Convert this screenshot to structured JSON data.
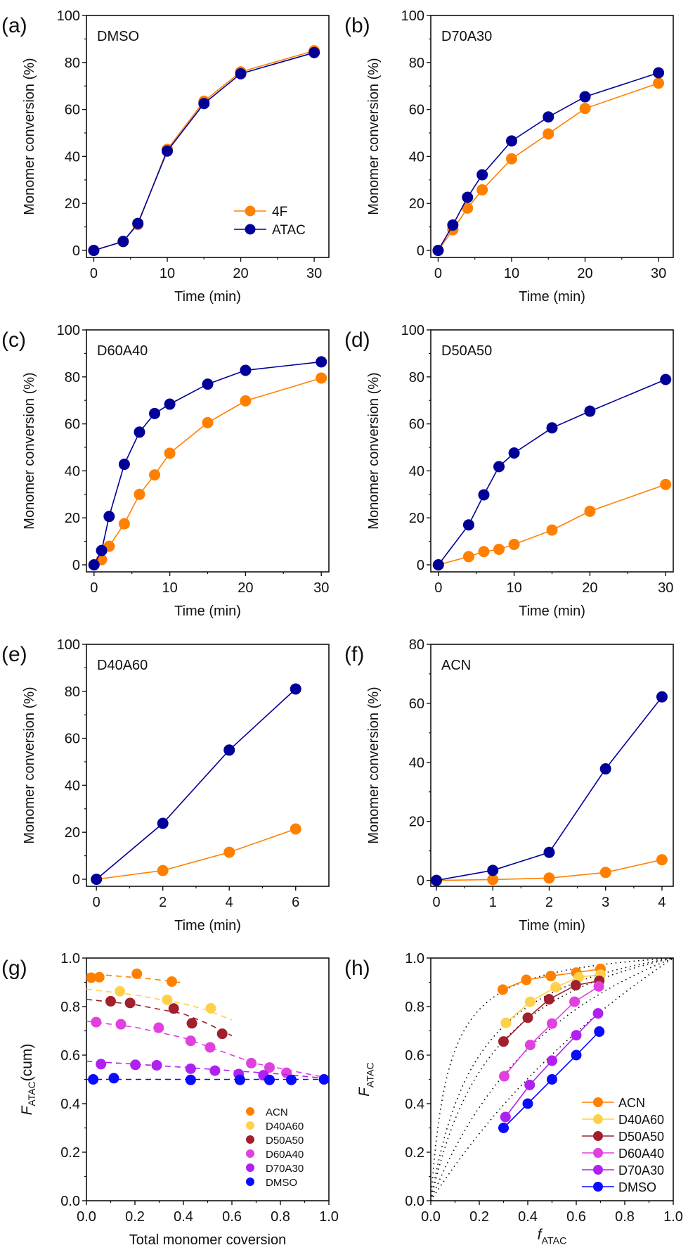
{
  "colors": {
    "4F": "#ff8000",
    "ATAC": "#000099",
    "ACN": "#ff8000",
    "D40A60": "#ffd04a",
    "D50A50": "#a0202e",
    "D60A40": "#e040e0",
    "D70A30": "#b020f0",
    "DMSO": "#0a0aff",
    "theory": "#000000"
  },
  "chart_data": [
    {
      "panel": "(a)",
      "type": "line",
      "annotation": "DMSO",
      "xlabel": "Time (min)",
      "ylabel": "Monomer conversion (%)",
      "xlim": [
        -1,
        32
      ],
      "ylim": [
        -3,
        100
      ],
      "xticks": [
        0,
        10,
        20,
        30
      ],
      "yticks": [
        0,
        20,
        40,
        60,
        80,
        100
      ],
      "legend": {
        "placement": "bottom-right",
        "entries": [
          "4F",
          "ATAC"
        ]
      },
      "series": [
        {
          "name": "4F",
          "x": [
            0,
            4,
            6,
            10,
            15,
            20,
            30
          ],
          "y": [
            0,
            3.8,
            11,
            43,
            63.5,
            76,
            85
          ]
        },
        {
          "name": "ATAC",
          "x": [
            0,
            4,
            6,
            10,
            15,
            20,
            30
          ],
          "y": [
            0,
            3.8,
            11.5,
            42.3,
            62.5,
            75.2,
            84.2
          ]
        }
      ]
    },
    {
      "panel": "(b)",
      "type": "line",
      "annotation": "D70A30",
      "xlabel": "Time (min)",
      "ylabel": "Monomer conversion (%)",
      "xlim": [
        -1,
        32
      ],
      "ylim": [
        -3,
        100
      ],
      "xticks": [
        0,
        10,
        20,
        30
      ],
      "yticks": [
        0,
        20,
        40,
        60,
        80,
        100
      ],
      "series": [
        {
          "name": "4F",
          "x": [
            0,
            2,
            4,
            6,
            10,
            15,
            20,
            30
          ],
          "y": [
            0,
            8.8,
            18,
            25.8,
            39,
            49.6,
            60.4,
            71.2
          ]
        },
        {
          "name": "ATAC",
          "x": [
            0,
            2,
            4,
            6,
            10,
            15,
            20,
            30
          ],
          "y": [
            0,
            10.8,
            22.6,
            32.2,
            46.6,
            56.8,
            65.4,
            75.6
          ]
        }
      ]
    },
    {
      "panel": "(c)",
      "type": "line",
      "annotation": "D60A40",
      "xlabel": "Time (min)",
      "ylabel": "Monomer conversion (%)",
      "xlim": [
        -1,
        31
      ],
      "ylim": [
        -3,
        100
      ],
      "xticks": [
        0,
        10,
        20,
        30
      ],
      "yticks": [
        0,
        20,
        40,
        60,
        80,
        100
      ],
      "series": [
        {
          "name": "4F",
          "x": [
            0,
            1,
            2,
            4,
            6,
            8,
            10,
            15,
            20,
            30
          ],
          "y": [
            0,
            2.2,
            7.9,
            17.5,
            30,
            38.3,
            47.5,
            60.5,
            69.8,
            79.5
          ]
        },
        {
          "name": "ATAC",
          "x": [
            0,
            1,
            2,
            4,
            6,
            8,
            10,
            15,
            20,
            30
          ],
          "y": [
            0,
            6.1,
            20.6,
            42.8,
            56.5,
            64.4,
            68.4,
            76.9,
            82.8,
            86.4
          ]
        }
      ]
    },
    {
      "panel": "(d)",
      "type": "line",
      "annotation": "D50A50",
      "xlabel": "Time (min)",
      "ylabel": "Monomer conversion (%)",
      "xlim": [
        -1,
        31
      ],
      "ylim": [
        -3,
        100
      ],
      "xticks": [
        0,
        10,
        20,
        30
      ],
      "yticks": [
        0,
        20,
        40,
        60,
        80,
        100
      ],
      "series": [
        {
          "name": "4F",
          "x": [
            0,
            4,
            6,
            8,
            10,
            15,
            20,
            30
          ],
          "y": [
            0,
            3.5,
            5.6,
            6.6,
            8.7,
            14.8,
            22.8,
            34.2
          ]
        },
        {
          "name": "ATAC",
          "x": [
            0,
            4,
            6,
            8,
            10,
            15,
            20,
            30
          ],
          "y": [
            0,
            17,
            29.8,
            41.8,
            47.6,
            58.3,
            65.4,
            78.9
          ]
        }
      ]
    },
    {
      "panel": "(e)",
      "type": "line",
      "annotation": "D40A60",
      "xlabel": "Time (min)",
      "ylabel": "Monomer conversion (%)",
      "xlim": [
        -0.3,
        7
      ],
      "ylim": [
        -3,
        100
      ],
      "xticks": [
        0,
        2,
        4,
        6
      ],
      "yticks": [
        0,
        20,
        40,
        60,
        80,
        100
      ],
      "series": [
        {
          "name": "4F",
          "x": [
            0,
            2,
            4,
            6
          ],
          "y": [
            0,
            3.7,
            11.5,
            21.4
          ]
        },
        {
          "name": "ATAC",
          "x": [
            0,
            2,
            4,
            6
          ],
          "y": [
            0,
            23.8,
            55,
            81
          ]
        }
      ]
    },
    {
      "panel": "(f)",
      "type": "line",
      "annotation": "ACN",
      "xlabel": "Time (min)",
      "ylabel": "Monomer conversion (%)",
      "xlim": [
        -0.1,
        4.2
      ],
      "ylim": [
        -2,
        80
      ],
      "xticks": [
        0,
        1,
        2,
        3,
        4
      ],
      "yticks": [
        0,
        20,
        40,
        60,
        80
      ],
      "series": [
        {
          "name": "4F",
          "x": [
            0,
            1,
            2,
            3,
            4
          ],
          "y": [
            0,
            0.3,
            0.8,
            2.7,
            7
          ]
        },
        {
          "name": "ATAC",
          "x": [
            0,
            1,
            2,
            3,
            4
          ],
          "y": [
            0,
            3.4,
            9.5,
            37.8,
            62.2
          ]
        }
      ]
    },
    {
      "panel": "(g)",
      "type": "scatter",
      "xlabel": "Total monomer coversion",
      "ylabel": "F_ATAC(cum)",
      "xlim": [
        0,
        1
      ],
      "ylim": [
        0,
        1
      ],
      "xticks": [
        0.0,
        0.2,
        0.4,
        0.6,
        0.8,
        1.0
      ],
      "yticks": [
        0.0,
        0.2,
        0.4,
        0.6,
        0.8,
        1.0
      ],
      "legend": {
        "placement": "bottom-right",
        "entries": [
          "ACN",
          "D40A60",
          "D50A50",
          "D60A40",
          "D70A30",
          "DMSO"
        ]
      },
      "series": [
        {
          "name": "ACN",
          "x": [
            0.02,
            0.053,
            0.208,
            0.352
          ],
          "y": [
            0.919,
            0.921,
            0.935,
            0.903
          ],
          "fit": {
            "x": [
              0.0,
              0.1,
              0.2,
              0.3,
              0.4
            ],
            "y": [
              0.935,
              0.928,
              0.92,
              0.91,
              0.897
            ]
          }
        },
        {
          "name": "D40A60",
          "x": [
            0.138,
            0.333,
            0.513
          ],
          "y": [
            0.863,
            0.828,
            0.793
          ],
          "fit": {
            "x": [
              0.0,
              0.2,
              0.4,
              0.5,
              0.6
            ],
            "y": [
              0.872,
              0.848,
              0.812,
              0.785,
              0.745
            ]
          }
        },
        {
          "name": "D50A50",
          "x": [
            0.1,
            0.18,
            0.36,
            0.435,
            0.56
          ],
          "y": [
            0.822,
            0.815,
            0.792,
            0.731,
            0.688
          ],
          "fit": {
            "x": [
              0.0,
              0.2,
              0.4,
              0.5,
              0.6
            ],
            "y": [
              0.83,
              0.808,
              0.77,
              0.73,
              0.68
            ]
          }
        },
        {
          "name": "D60A40",
          "x": [
            0.04,
            0.142,
            0.298,
            0.43,
            0.51,
            0.68,
            0.755,
            0.825
          ],
          "y": [
            0.736,
            0.727,
            0.713,
            0.659,
            0.632,
            0.567,
            0.549,
            0.527
          ],
          "fit": {
            "x": [
              0.0,
              0.2,
              0.4,
              0.6,
              0.7,
              0.8,
              0.9,
              1.0
            ],
            "y": [
              0.74,
              0.715,
              0.672,
              0.6,
              0.565,
              0.545,
              0.525,
              0.505
            ]
          }
        },
        {
          "name": "D70A30",
          "x": [
            0.06,
            0.202,
            0.29,
            0.43,
            0.53,
            0.628,
            0.73
          ],
          "y": [
            0.563,
            0.56,
            0.558,
            0.544,
            0.536,
            0.522,
            0.517
          ],
          "fit": {
            "x": [
              0.0,
              0.2,
              0.4,
              0.6,
              0.8,
              1.0
            ],
            "y": [
              0.575,
              0.563,
              0.55,
              0.536,
              0.522,
              0.503
            ]
          }
        },
        {
          "name": "DMSO",
          "x": [
            0.028,
            0.113,
            0.43,
            0.633,
            0.755,
            0.845,
            0.98
          ],
          "y": [
            0.5,
            0.505,
            0.498,
            0.498,
            0.498,
            0.498,
            0.5
          ],
          "fit": {
            "x": [
              0.0,
              1.0
            ],
            "y": [
              0.5,
              0.5
            ]
          }
        }
      ]
    },
    {
      "panel": "(h)",
      "type": "line",
      "xlabel": "f_ATAC",
      "ylabel": "F_ATAC",
      "xlim": [
        0,
        1
      ],
      "ylim": [
        0,
        1
      ],
      "xticks": [
        0.0,
        0.2,
        0.4,
        0.6,
        0.8,
        1.0
      ],
      "yticks": [
        0.0,
        0.2,
        0.4,
        0.6,
        0.8,
        1.0
      ],
      "legend": {
        "placement": "bottom-right",
        "entries": [
          "ACN",
          "D40A60",
          "D50A50",
          "D60A40",
          "D70A30",
          "DMSO"
        ]
      },
      "series": [
        {
          "name": "ACN",
          "x": [
            0.297,
            0.394,
            0.495,
            0.6,
            0.7
          ],
          "y": [
            0.87,
            0.91,
            0.926,
            0.94,
            0.955
          ]
        },
        {
          "name": "D40A60",
          "x": [
            0.31,
            0.41,
            0.515,
            0.61,
            0.7
          ],
          "y": [
            0.733,
            0.82,
            0.88,
            0.921,
            0.932
          ]
        },
        {
          "name": "D50A50",
          "x": [
            0.3,
            0.4,
            0.488,
            0.598,
            0.695
          ],
          "y": [
            0.656,
            0.754,
            0.83,
            0.888,
            0.906
          ]
        },
        {
          "name": "D60A40",
          "x": [
            0.303,
            0.41,
            0.5,
            0.593,
            0.693
          ],
          "y": [
            0.513,
            0.642,
            0.73,
            0.82,
            0.883
          ]
        },
        {
          "name": "D70A30",
          "x": [
            0.308,
            0.408,
            0.5,
            0.6,
            0.69
          ],
          "y": [
            0.345,
            0.477,
            0.577,
            0.682,
            0.772
          ]
        },
        {
          "name": "DMSO",
          "x": [
            0.3,
            0.4,
            0.5,
            0.6,
            0.695
          ],
          "y": [
            0.3,
            0.4,
            0.5,
            0.6,
            0.697
          ]
        }
      ],
      "theory_curves": {
        "style": "dotted",
        "r_ATAC": [
          15,
          6,
          4.5,
          2.5,
          1.5
        ],
        "r_4F": [
          0.07,
          0.17,
          0.22,
          0.4,
          0.65
        ]
      }
    }
  ]
}
